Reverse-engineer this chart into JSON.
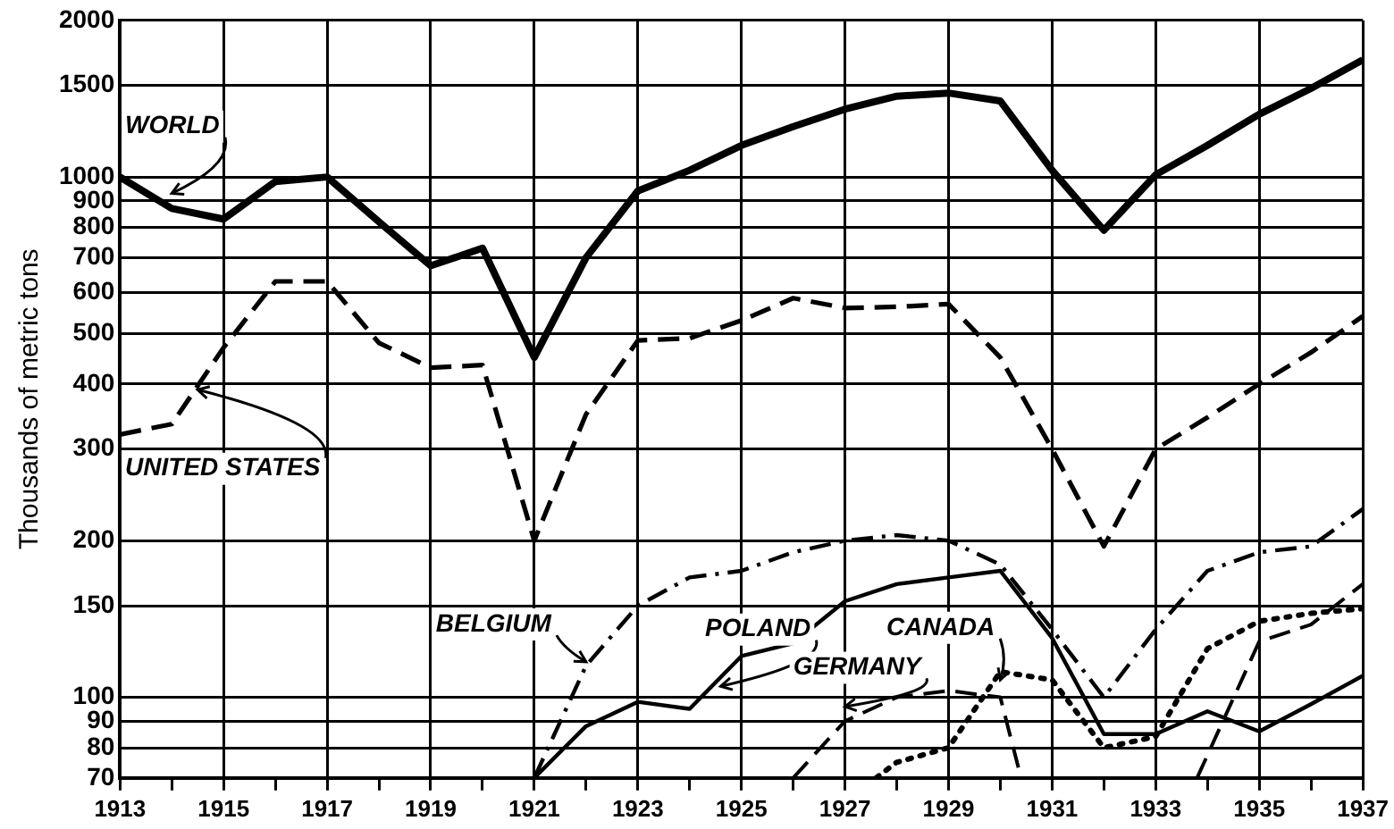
{
  "chart_data": {
    "type": "line",
    "ylabel": "Thousands of metric tons",
    "log": "y",
    "grid": true,
    "legend": false,
    "marker": "none",
    "xlim": [
      1913,
      1937
    ],
    "xticks": [
      1913,
      {
        "value": 1914,
        "label": null
      },
      1915,
      {
        "value": 1916,
        "label": null
      },
      1917,
      {
        "value": 1918,
        "label": null
      },
      1919,
      {
        "value": 1920,
        "label": null
      },
      1921,
      {
        "value": 1922,
        "label": null
      },
      1923,
      {
        "value": 1924,
        "label": null
      },
      1925,
      {
        "value": 1926,
        "label": null
      },
      1927,
      {
        "value": 1928,
        "label": null
      },
      1929,
      {
        "value": 1930,
        "label": null
      },
      1931,
      {
        "value": 1932,
        "label": null
      },
      1933,
      {
        "value": 1934,
        "label": null
      },
      1935,
      {
        "value": 1936,
        "label": null
      },
      1937
    ],
    "ylim": [
      70,
      2000
    ],
    "yticks": [
      70,
      80,
      90,
      100,
      150,
      200,
      300,
      400,
      500,
      600,
      700,
      800,
      900,
      1000,
      1500,
      2000
    ],
    "series": [
      {
        "name": "WORLD",
        "color": "#000000",
        "line_style": "solid",
        "x": [
          1913,
          1914,
          1915,
          1916,
          1917,
          1918,
          1919,
          1920,
          1921,
          1922,
          1923,
          1924,
          1925,
          1926,
          1927,
          1928,
          1929,
          1930,
          1931,
          1932,
          1933,
          1934,
          1935,
          1936,
          1937
        ],
        "values": [
          1000,
          870,
          830,
          980,
          1000,
          820,
          675,
          730,
          450,
          700,
          940,
          1030,
          1150,
          1250,
          1350,
          1430,
          1450,
          1400,
          1030,
          790,
          1010,
          1150,
          1320,
          1480,
          1680
        ]
      },
      {
        "name": "UNITED STATES",
        "color": "#000000",
        "line_style": "dashed",
        "x": [
          1913,
          1914,
          1915,
          1916,
          1917,
          1918,
          1919,
          1920,
          1921,
          1922,
          1923,
          1924,
          1925,
          1926,
          1927,
          1928,
          1929,
          1930,
          1931,
          1932,
          1933,
          1934,
          1935,
          1936,
          1937
        ],
        "values": [
          320,
          335,
          470,
          630,
          630,
          480,
          430,
          435,
          200,
          350,
          485,
          490,
          530,
          585,
          560,
          563,
          570,
          450,
          300,
          195,
          300,
          345,
          400,
          460,
          540
        ]
      },
      {
        "name": "BELGIUM",
        "color": "#000000",
        "line_style": "dashdot",
        "x": [
          1921,
          1922,
          1923,
          1924,
          1925,
          1926,
          1927,
          1928,
          1929,
          1930,
          1931,
          1932,
          1933,
          1934,
          1935,
          1936,
          1937
        ],
        "values": [
          70,
          115,
          150,
          170,
          175,
          190,
          200,
          205,
          200,
          180,
          135,
          100,
          135,
          175,
          190,
          195,
          230
        ]
      },
      {
        "name": "POLAND",
        "color": "#000000",
        "line_style": "solid",
        "x": [
          1921,
          1922,
          1923,
          1924,
          1925,
          1926,
          1927,
          1928,
          1929,
          1930,
          1931,
          1932,
          1933,
          1934,
          1935,
          1936,
          1937
        ],
        "values": [
          70,
          88,
          98,
          95,
          120,
          127,
          153,
          165,
          170,
          175,
          130,
          85,
          85,
          94,
          86,
          97,
          110
        ]
      },
      {
        "name": "GERMANY",
        "color": "#000000",
        "line_style": "dashed",
        "x": [
          1926,
          1927,
          1928,
          1929,
          1930,
          1930.4,
          1932,
          1933.8,
          1935,
          1936,
          1937
        ],
        "values": [
          70,
          90,
          100,
          103,
          100,
          70,
          null,
          70,
          128,
          138,
          165
        ]
      },
      {
        "name": "CANADA",
        "color": "#000000",
        "line_style": "dotted",
        "x": [
          1927.6,
          1928,
          1929,
          1930,
          1931,
          1932,
          1933,
          1934,
          1935,
          1936,
          1937
        ],
        "values": [
          70,
          75,
          80,
          112,
          108,
          80,
          84,
          124,
          140,
          145,
          148
        ]
      }
    ]
  }
}
